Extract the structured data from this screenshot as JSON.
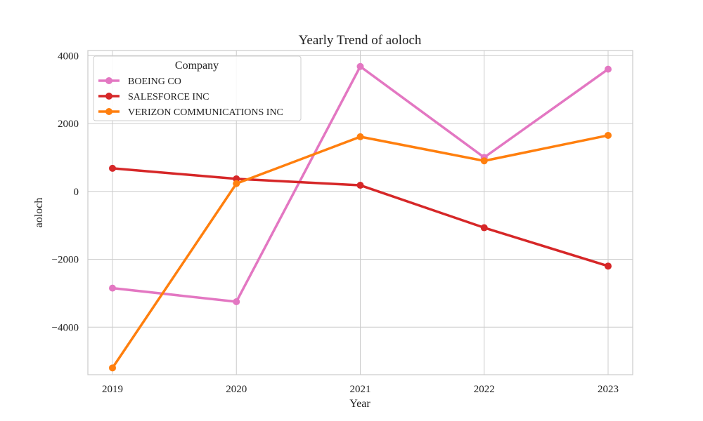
{
  "chart_data": {
    "type": "line",
    "title": "Yearly Trend of aoloch",
    "xlabel": "Year",
    "ylabel": "aoloch",
    "categories": [
      "2019",
      "2020",
      "2021",
      "2022",
      "2023"
    ],
    "ylim": [
      -5400,
      4150
    ],
    "yticks": [
      4000,
      2000,
      0,
      -2000,
      -4000
    ],
    "ytick_labels": [
      "4000",
      "2000",
      "0",
      "−2000",
      "−4000"
    ],
    "grid": true,
    "legend": {
      "title": "Company",
      "position": "top-left"
    },
    "series": [
      {
        "name": "BOEING CO",
        "color": "#e377c2",
        "values": [
          -2850,
          -3250,
          3680,
          1000,
          3600
        ]
      },
      {
        "name": "SALESFORCE INC",
        "color": "#d62728",
        "values": [
          680,
          370,
          180,
          -1070,
          -2200
        ]
      },
      {
        "name": "VERIZON COMMUNICATIONS INC",
        "color": "#ff7f0e",
        "values": [
          -5200,
          230,
          1610,
          900,
          1650
        ]
      }
    ]
  }
}
